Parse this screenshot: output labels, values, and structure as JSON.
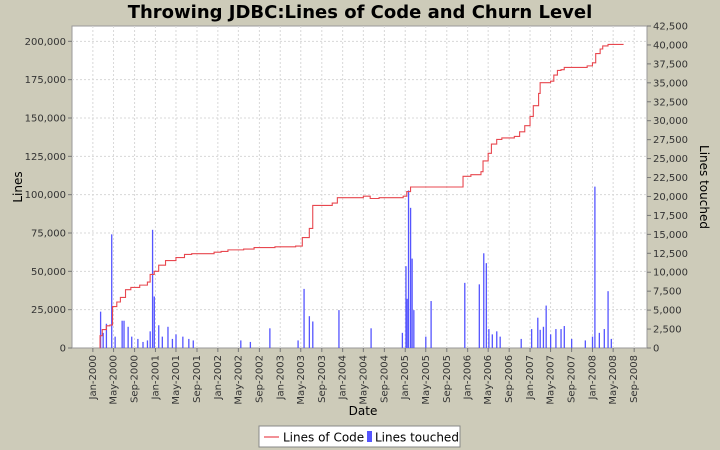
{
  "chart_data": {
    "type": "line",
    "title": "Throwing JDBC:Lines of Code and Churn Level",
    "xlabel": "Date",
    "ylabel": "Lines",
    "y2label": "Lines touched",
    "x_ticks": [
      "Jan-2000",
      "May-2000",
      "Sep-2000",
      "Jan-2001",
      "May-2001",
      "Sep-2001",
      "Jan-2002",
      "May-2002",
      "Sep-2002",
      "Jan-2003",
      "May-2003",
      "Sep-2003",
      "Jan-2004",
      "May-2004",
      "Sep-2004",
      "Jan-2005",
      "May-2005",
      "Sep-2005",
      "Jan-2006",
      "May-2006",
      "Sep-2006",
      "Jan-2007",
      "May-2007",
      "Sep-2007",
      "Jan-2008",
      "May-2008",
      "Sep-2008"
    ],
    "xlim": [
      "1999-09-01",
      "2008-11-15"
    ],
    "ylim": [
      0,
      210000
    ],
    "y_ticks": [
      "0",
      "25,000",
      "50,000",
      "75,000",
      "100,000",
      "125,000",
      "150,000",
      "175,000",
      "200,000"
    ],
    "y2lim": [
      0,
      42500
    ],
    "y2_ticks": [
      "0",
      "2,500",
      "5,000",
      "7,500",
      "10,000",
      "12,500",
      "15,000",
      "17,500",
      "20,000",
      "22,500",
      "25,000",
      "27,500",
      "30,000",
      "32,500",
      "35,000",
      "37,500",
      "40,000",
      "42,500"
    ],
    "grid": true,
    "legend_position": "bottom",
    "series": [
      {
        "name": "Lines of Code",
        "type": "step-line",
        "axis": "left",
        "color": "#e8474f",
        "points": [
          [
            "2000-02-10",
            0
          ],
          [
            "2000-02-12",
            8000
          ],
          [
            "2000-02-25",
            12000
          ],
          [
            "2000-03-20",
            14500
          ],
          [
            "2000-04-10",
            15000
          ],
          [
            "2000-04-25",
            27000
          ],
          [
            "2000-05-20",
            30000
          ],
          [
            "2000-06-10",
            33000
          ],
          [
            "2000-07-10",
            38000
          ],
          [
            "2000-08-10",
            39500
          ],
          [
            "2000-10-01",
            41000
          ],
          [
            "2000-11-15",
            43000
          ],
          [
            "2000-12-01",
            48000
          ],
          [
            "2000-12-25",
            50000
          ],
          [
            "2001-01-20",
            54000
          ],
          [
            "2001-03-01",
            57000
          ],
          [
            "2001-05-01",
            59000
          ],
          [
            "2001-06-20",
            61000
          ],
          [
            "2001-08-01",
            61500
          ],
          [
            "2001-12-10",
            62500
          ],
          [
            "2002-01-20",
            63000
          ],
          [
            "2002-03-01",
            64000
          ],
          [
            "2002-06-01",
            64500
          ],
          [
            "2002-08-01",
            65500
          ],
          [
            "2002-12-01",
            66000
          ],
          [
            "2003-04-01",
            66500
          ],
          [
            "2003-05-10",
            72000
          ],
          [
            "2003-06-20",
            78000
          ],
          [
            "2003-07-10",
            93000
          ],
          [
            "2003-11-01",
            94500
          ],
          [
            "2003-12-01",
            98000
          ],
          [
            "2004-05-01",
            99000
          ],
          [
            "2004-06-10",
            97500
          ],
          [
            "2004-08-01",
            98000
          ],
          [
            "2004-12-20",
            99000
          ],
          [
            "2005-01-10",
            102000
          ],
          [
            "2005-02-01",
            105000
          ],
          [
            "2005-12-05",
            112000
          ],
          [
            "2006-01-20",
            113000
          ],
          [
            "2006-03-20",
            115000
          ],
          [
            "2006-04-01",
            122000
          ],
          [
            "2006-05-01",
            127000
          ],
          [
            "2006-05-20",
            133000
          ],
          [
            "2006-06-20",
            136000
          ],
          [
            "2006-07-20",
            137000
          ],
          [
            "2006-10-01",
            138000
          ],
          [
            "2006-11-01",
            141000
          ],
          [
            "2006-12-01",
            145000
          ],
          [
            "2007-01-01",
            151000
          ],
          [
            "2007-01-20",
            158000
          ],
          [
            "2007-02-20",
            166000
          ],
          [
            "2007-03-01",
            173000
          ],
          [
            "2007-05-01",
            174000
          ],
          [
            "2007-05-20",
            178000
          ],
          [
            "2007-06-10",
            181000
          ],
          [
            "2007-07-01",
            181500
          ],
          [
            "2007-07-20",
            183000
          ],
          [
            "2007-12-01",
            184000
          ],
          [
            "2008-01-01",
            186000
          ],
          [
            "2008-01-20",
            192000
          ],
          [
            "2008-02-15",
            195000
          ],
          [
            "2008-03-01",
            197000
          ],
          [
            "2008-04-01",
            198000
          ],
          [
            "2008-07-01",
            198000
          ]
        ]
      },
      {
        "name": "Lines touched",
        "type": "bar",
        "axis": "right",
        "color": "#5555ff",
        "points": [
          [
            "2000-02-15",
            4800
          ],
          [
            "2000-03-01",
            2000
          ],
          [
            "2000-03-20",
            3200
          ],
          [
            "2000-04-20",
            15000
          ],
          [
            "2000-05-10",
            1500
          ],
          [
            "2000-06-20",
            3600
          ],
          [
            "2000-07-01",
            3600
          ],
          [
            "2000-07-25",
            2800
          ],
          [
            "2000-08-15",
            1500
          ],
          [
            "2000-09-20",
            1200
          ],
          [
            "2000-10-20",
            800
          ],
          [
            "2000-11-15",
            1000
          ],
          [
            "2000-12-01",
            2200
          ],
          [
            "2000-12-15",
            15600
          ],
          [
            "2000-12-25",
            6800
          ],
          [
            "2001-01-20",
            3000
          ],
          [
            "2001-02-10",
            1500
          ],
          [
            "2001-03-15",
            2800
          ],
          [
            "2001-04-10",
            1200
          ],
          [
            "2001-05-01",
            1800
          ],
          [
            "2001-06-10",
            1500
          ],
          [
            "2001-07-15",
            1200
          ],
          [
            "2001-08-10",
            1000
          ],
          [
            "2002-05-15",
            1000
          ],
          [
            "2002-07-10",
            800
          ],
          [
            "2002-11-01",
            2600
          ],
          [
            "2003-04-15",
            1000
          ],
          [
            "2003-05-20",
            7800
          ],
          [
            "2003-06-20",
            4200
          ],
          [
            "2003-07-10",
            3500
          ],
          [
            "2003-12-10",
            5000
          ],
          [
            "2004-06-15",
            2600
          ],
          [
            "2004-12-15",
            2000
          ],
          [
            "2005-01-05",
            10800
          ],
          [
            "2005-01-12",
            6500
          ],
          [
            "2005-01-20",
            20800
          ],
          [
            "2005-02-01",
            18500
          ],
          [
            "2005-02-10",
            11800
          ],
          [
            "2005-02-20",
            5000
          ],
          [
            "2005-05-01",
            1500
          ],
          [
            "2005-06-01",
            6200
          ],
          [
            "2005-12-15",
            8600
          ],
          [
            "2006-03-10",
            8400
          ],
          [
            "2006-04-05",
            12500
          ],
          [
            "2006-04-20",
            11200
          ],
          [
            "2006-05-05",
            2500
          ],
          [
            "2006-05-25",
            1800
          ],
          [
            "2006-06-20",
            2200
          ],
          [
            "2006-07-10",
            1500
          ],
          [
            "2006-11-10",
            1200
          ],
          [
            "2007-01-10",
            2500
          ],
          [
            "2007-02-15",
            4000
          ],
          [
            "2007-03-01",
            2400
          ],
          [
            "2007-03-20",
            2800
          ],
          [
            "2007-04-05",
            5600
          ],
          [
            "2007-05-01",
            1800
          ],
          [
            "2007-06-01",
            2500
          ],
          [
            "2007-07-01",
            2500
          ],
          [
            "2007-07-20",
            2900
          ],
          [
            "2007-09-01",
            1200
          ],
          [
            "2007-11-20",
            1000
          ],
          [
            "2008-01-01",
            1500
          ],
          [
            "2008-01-15",
            21300
          ],
          [
            "2008-02-10",
            2000
          ],
          [
            "2008-03-10",
            2500
          ],
          [
            "2008-04-01",
            7500
          ],
          [
            "2008-04-20",
            1200
          ]
        ]
      }
    ]
  }
}
